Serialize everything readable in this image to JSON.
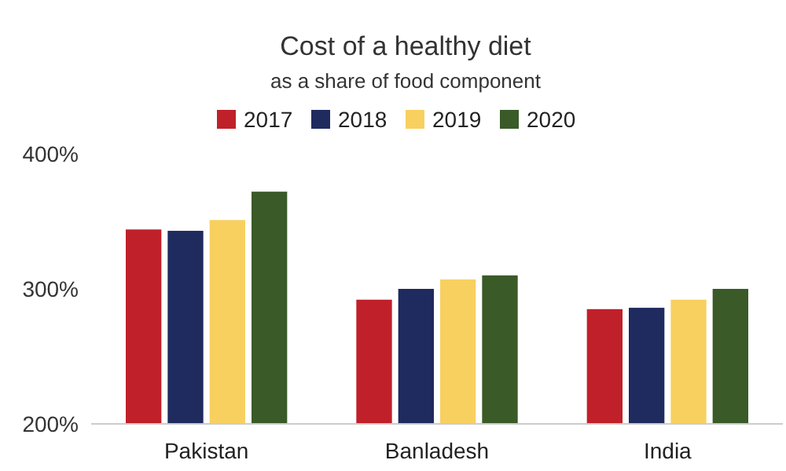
{
  "chart_data": {
    "type": "bar",
    "title": "Cost of a healthy diet",
    "subtitle": "as a share of food component",
    "categories": [
      "Pakistan",
      "Banladesh",
      "India"
    ],
    "series": [
      {
        "name": "2017",
        "color": "#c0202a",
        "values": [
          344,
          292,
          285
        ]
      },
      {
        "name": "2018",
        "color": "#1f2a5e",
        "values": [
          343,
          300,
          286
        ]
      },
      {
        "name": "2019",
        "color": "#f8d060",
        "values": [
          351,
          307,
          292
        ]
      },
      {
        "name": "2020",
        "color": "#3a5a28",
        "values": [
          372,
          310,
          300
        ]
      }
    ],
    "ylim": [
      200,
      400
    ],
    "yticks": [
      {
        "value": 200,
        "label": "200%"
      },
      {
        "value": 300,
        "label": "300%"
      },
      {
        "value": 400,
        "label": "400%"
      }
    ],
    "legend": "top",
    "grid": false
  }
}
